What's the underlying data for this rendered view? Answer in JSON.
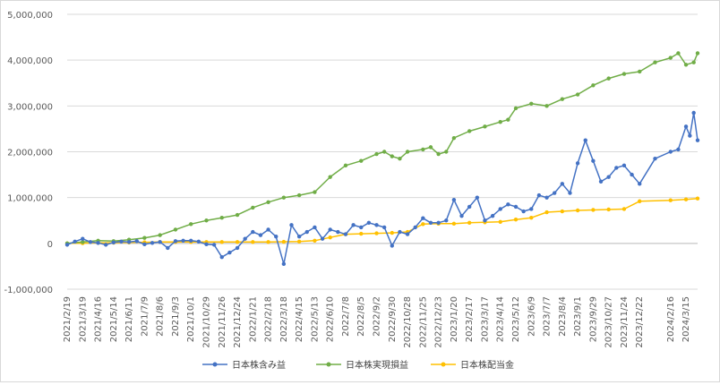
{
  "chart_data": {
    "type": "line",
    "title": "",
    "xlabel": "",
    "ylabel": "",
    "ylim": [
      -1000000,
      5000000
    ],
    "yticks": [
      -1000000,
      0,
      1000000,
      2000000,
      3000000,
      4000000,
      5000000
    ],
    "ytick_labels": [
      "-1,000,000",
      "0",
      "1,000,000",
      "2,000,000",
      "3,000,000",
      "4,000,000",
      "5,000,000"
    ],
    "negative_tick_color": "#ff0000",
    "xlim": [
      "2021/2/19",
      "2024/4/5"
    ],
    "xtick_labels": [
      "2021/2/19",
      "2021/3/19",
      "2021/4/16",
      "2021/5/14",
      "2021/6/11",
      "2021/7/9",
      "2021/8/6",
      "2021/9/3",
      "2021/10/1",
      "2021/10/29",
      "2021/11/26",
      "2021/12/24",
      "2022/1/21",
      "2022/2/18",
      "2022/3/18",
      "2022/4/15",
      "2022/5/13",
      "2022/6/10",
      "2022/7/8",
      "2022/8/5",
      "2022/9/2",
      "2022/9/30",
      "2022/10/28",
      "2022/11/25",
      "2022/12/23",
      "2023/1/20",
      "2023/2/17",
      "2023/3/17",
      "2023/4/14",
      "2023/5/12",
      "2023/6/9",
      "2023/7/7",
      "2023/8/4",
      "2023/9/1",
      "2023/9/29",
      "2023/10/27",
      "2023/11/24",
      "2023/12/22",
      "2024/2/16",
      "2024/3/15"
    ],
    "grid": "horizontal",
    "legend_position": "bottom",
    "series": [
      {
        "name": "日本株含み益",
        "color": "#4472C4",
        "x": [
          "2021/2/19",
          "2021/3/5",
          "2021/3/19",
          "2021/4/2",
          "2021/4/16",
          "2021/4/30",
          "2021/5/14",
          "2021/5/28",
          "2021/6/11",
          "2021/6/25",
          "2021/7/9",
          "2021/7/23",
          "2021/8/6",
          "2021/8/20",
          "2021/9/3",
          "2021/9/17",
          "2021/10/1",
          "2021/10/15",
          "2021/10/29",
          "2021/11/12",
          "2021/11/26",
          "2021/12/10",
          "2021/12/24",
          "2022/1/7",
          "2022/1/21",
          "2022/2/4",
          "2022/2/18",
          "2022/3/4",
          "2022/3/18",
          "2022/4/1",
          "2022/4/15",
          "2022/4/29",
          "2022/5/13",
          "2022/5/27",
          "2022/6/10",
          "2022/6/24",
          "2022/7/8",
          "2022/7/22",
          "2022/8/5",
          "2022/8/19",
          "2022/9/2",
          "2022/9/16",
          "2022/9/30",
          "2022/10/14",
          "2022/10/28",
          "2022/11/11",
          "2022/11/25",
          "2022/12/9",
          "2022/12/23",
          "2023/1/6",
          "2023/1/20",
          "2023/2/3",
          "2023/2/17",
          "2023/3/3",
          "2023/3/17",
          "2023/3/31",
          "2023/4/14",
          "2023/4/28",
          "2023/5/12",
          "2023/5/26",
          "2023/6/9",
          "2023/6/23",
          "2023/7/7",
          "2023/7/21",
          "2023/8/4",
          "2023/8/18",
          "2023/9/1",
          "2023/9/15",
          "2023/9/29",
          "2023/10/13",
          "2023/10/27",
          "2023/11/10",
          "2023/11/24",
          "2023/12/8",
          "2023/12/22",
          "2024/1/19",
          "2024/2/16",
          "2024/3/1",
          "2024/3/15",
          "2024/3/22",
          "2024/3/29",
          "2024/4/5"
        ],
        "values": [
          -30000,
          40000,
          100000,
          30000,
          10000,
          -30000,
          20000,
          40000,
          30000,
          50000,
          -20000,
          10000,
          30000,
          -100000,
          50000,
          60000,
          60000,
          40000,
          -20000,
          -30000,
          -300000,
          -200000,
          -100000,
          100000,
          250000,
          180000,
          300000,
          150000,
          -450000,
          400000,
          150000,
          250000,
          350000,
          100000,
          300000,
          250000,
          200000,
          400000,
          350000,
          450000,
          400000,
          350000,
          -50000,
          250000,
          200000,
          350000,
          550000,
          450000,
          450000,
          500000,
          950000,
          600000,
          800000,
          1000000,
          500000,
          600000,
          750000,
          850000,
          800000,
          700000,
          750000,
          1050000,
          1000000,
          1100000,
          1300000,
          1100000,
          1750000,
          2250000,
          1800000,
          1350000,
          1450000,
          1650000,
          1700000,
          1500000,
          1300000,
          1850000,
          2000000,
          2050000,
          2550000,
          2350000,
          2850000,
          2250000
        ]
      },
      {
        "name": "日本株実現損益",
        "color": "#70AD47",
        "x": [
          "2021/2/19",
          "2021/3/19",
          "2021/4/16",
          "2021/5/14",
          "2021/6/11",
          "2021/7/9",
          "2021/8/6",
          "2021/9/3",
          "2021/10/1",
          "2021/10/29",
          "2021/11/26",
          "2021/12/24",
          "2022/1/21",
          "2022/2/18",
          "2022/3/18",
          "2022/4/15",
          "2022/5/13",
          "2022/6/10",
          "2022/7/8",
          "2022/8/5",
          "2022/9/2",
          "2022/9/16",
          "2022/9/30",
          "2022/10/14",
          "2022/10/28",
          "2022/11/25",
          "2022/12/9",
          "2022/12/23",
          "2023/1/6",
          "2023/1/20",
          "2023/2/17",
          "2023/3/17",
          "2023/4/14",
          "2023/4/28",
          "2023/5/12",
          "2023/6/9",
          "2023/7/7",
          "2023/8/4",
          "2023/9/1",
          "2023/9/29",
          "2023/10/27",
          "2023/11/24",
          "2023/12/22",
          "2024/1/19",
          "2024/2/16",
          "2024/3/1",
          "2024/3/15",
          "2024/3/29",
          "2024/4/5"
        ],
        "values": [
          0,
          30000,
          60000,
          50000,
          80000,
          120000,
          180000,
          300000,
          420000,
          500000,
          560000,
          620000,
          780000,
          900000,
          1000000,
          1050000,
          1120000,
          1450000,
          1700000,
          1800000,
          1950000,
          2000000,
          1900000,
          1850000,
          2000000,
          2050000,
          2100000,
          1950000,
          2000000,
          2300000,
          2450000,
          2550000,
          2650000,
          2700000,
          2950000,
          3050000,
          3000000,
          3150000,
          3250000,
          3450000,
          3600000,
          3700000,
          3750000,
          3950000,
          4050000,
          4150000,
          3900000,
          3950000,
          4150000
        ]
      },
      {
        "name": "日本株配当金",
        "color": "#FFC000",
        "x": [
          "2021/2/19",
          "2021/3/19",
          "2021/4/16",
          "2021/5/14",
          "2021/6/11",
          "2021/7/9",
          "2021/8/6",
          "2021/9/3",
          "2021/10/1",
          "2021/10/29",
          "2021/11/26",
          "2021/12/24",
          "2022/1/21",
          "2022/2/18",
          "2022/3/18",
          "2022/4/15",
          "2022/5/13",
          "2022/6/10",
          "2022/7/8",
          "2022/8/5",
          "2022/9/2",
          "2022/9/30",
          "2022/10/28",
          "2022/11/25",
          "2022/12/23",
          "2023/1/20",
          "2023/2/17",
          "2023/3/17",
          "2023/4/14",
          "2023/5/12",
          "2023/6/9",
          "2023/7/7",
          "2023/8/4",
          "2023/9/1",
          "2023/9/29",
          "2023/10/27",
          "2023/11/24",
          "2023/12/22",
          "2024/2/16",
          "2024/3/15",
          "2024/4/5"
        ],
        "values": [
          0,
          5000,
          10000,
          15000,
          20000,
          25000,
          30000,
          30000,
          30000,
          30000,
          30000,
          30000,
          30000,
          30000,
          35000,
          40000,
          60000,
          130000,
          200000,
          210000,
          220000,
          230000,
          250000,
          420000,
          430000,
          430000,
          450000,
          460000,
          470000,
          520000,
          560000,
          680000,
          700000,
          720000,
          730000,
          740000,
          750000,
          920000,
          940000,
          960000,
          980000
        ]
      }
    ]
  }
}
